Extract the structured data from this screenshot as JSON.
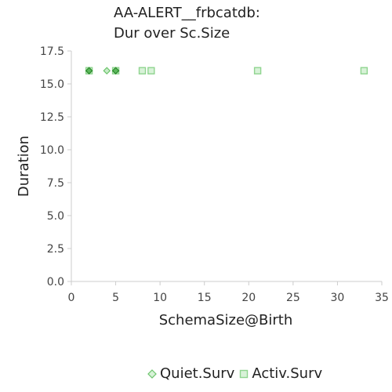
{
  "chart_data": {
    "type": "scatter",
    "title_lines": [
      "AA-ALERT__frbcatdb:",
      "Dur over Sc.Size"
    ],
    "xlabel": "SchemaSize@Birth",
    "ylabel": "Duration",
    "xlim": [
      0,
      35
    ],
    "ylim": [
      0,
      17.5
    ],
    "xticks": [
      "0",
      "5",
      "10",
      "15",
      "20",
      "25",
      "30",
      "35"
    ],
    "yticks": [
      "0.0",
      "2.5",
      "5.0",
      "7.5",
      "10.0",
      "12.5",
      "15.0",
      "17.5"
    ],
    "grid": false,
    "legend_position": "bottom",
    "series": [
      {
        "name": "Quiet.Surv",
        "marker": "diamond",
        "color": "#6cc46c",
        "points": [
          [
            2,
            16
          ],
          [
            4,
            16
          ],
          [
            5,
            16
          ]
        ]
      },
      {
        "name": "Activ.Surv",
        "marker": "square",
        "color": "#8fd48f",
        "points": [
          [
            2,
            16
          ],
          [
            5,
            16
          ],
          [
            8,
            16
          ],
          [
            9,
            16
          ],
          [
            21,
            16
          ],
          [
            33,
            16
          ]
        ]
      }
    ]
  }
}
